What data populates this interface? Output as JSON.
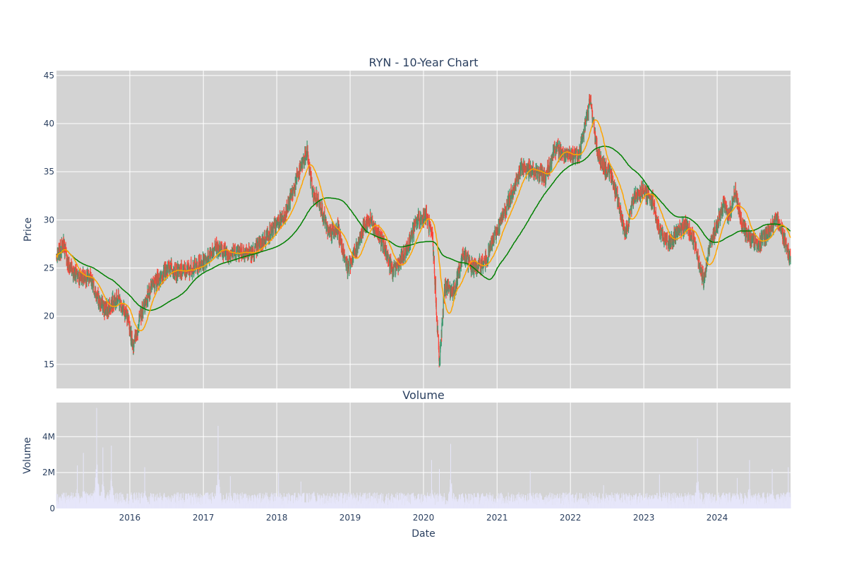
{
  "chart_data": [
    {
      "type": "candlestick",
      "title": "RYN - 10-Year Chart",
      "ylabel": "Price",
      "xlim": [
        "2015-01-01",
        "2024-12-31"
      ],
      "ylim": [
        12.5,
        45.5
      ],
      "y_ticks": [
        15,
        20,
        25,
        30,
        35,
        40,
        45
      ],
      "grid": true,
      "legend": "none",
      "colors": {
        "plot_bg": "#d3d3d3",
        "up": "#3d9970",
        "down": "#ff4136",
        "short_ma": "#ffa500",
        "long_ma": "#008000",
        "grid": "#ffffff"
      },
      "price_path": [
        [
          "2015-01-05",
          26.2
        ],
        [
          "2015-02-05",
          27.6
        ],
        [
          "2015-03-01",
          25.2
        ],
        [
          "2015-04-15",
          24.2
        ],
        [
          "2015-06-15",
          24.0
        ],
        [
          "2015-08-01",
          21.5
        ],
        [
          "2015-09-01",
          20.6
        ],
        [
          "2015-11-01",
          22.0
        ],
        [
          "2015-12-15",
          20.0
        ],
        [
          "2016-01-20",
          17.0
        ],
        [
          "2016-03-01",
          20.5
        ],
        [
          "2016-04-15",
          23.0
        ],
        [
          "2016-06-01",
          24.0
        ],
        [
          "2016-07-15",
          25.2
        ],
        [
          "2016-09-01",
          24.5
        ],
        [
          "2016-11-01",
          25.0
        ],
        [
          "2017-01-01",
          25.5
        ],
        [
          "2017-03-01",
          27.2
        ],
        [
          "2017-05-01",
          26.5
        ],
        [
          "2017-07-01",
          26.8
        ],
        [
          "2017-09-01",
          26.5
        ],
        [
          "2017-11-01",
          28.0
        ],
        [
          "2018-01-01",
          29.5
        ],
        [
          "2018-02-15",
          30.8
        ],
        [
          "2018-03-15",
          32.5
        ],
        [
          "2018-05-01",
          35.5
        ],
        [
          "2018-06-01",
          37.0
        ],
        [
          "2018-07-01",
          32.5
        ],
        [
          "2018-08-01",
          32.0
        ],
        [
          "2018-09-15",
          28.5
        ],
        [
          "2018-11-01",
          29.0
        ],
        [
          "2018-12-20",
          25.0
        ],
        [
          "2019-02-01",
          27.0
        ],
        [
          "2019-03-15",
          29.5
        ],
        [
          "2019-04-15",
          30.0
        ],
        [
          "2019-06-15",
          27.5
        ],
        [
          "2019-08-01",
          24.5
        ],
        [
          "2019-10-01",
          26.5
        ],
        [
          "2019-12-01",
          30.0
        ],
        [
          "2020-01-15",
          30.5
        ],
        [
          "2020-02-15",
          28.0
        ],
        [
          "2020-03-20",
          15.0
        ],
        [
          "2020-04-15",
          23.0
        ],
        [
          "2020-06-01",
          22.5
        ],
        [
          "2020-07-15",
          26.5
        ],
        [
          "2020-09-01",
          25.0
        ],
        [
          "2020-11-01",
          25.5
        ],
        [
          "2021-01-01",
          29.0
        ],
        [
          "2021-03-01",
          32.0
        ],
        [
          "2021-05-01",
          35.5
        ],
        [
          "2021-07-01",
          35.0
        ],
        [
          "2021-09-01",
          34.5
        ],
        [
          "2021-10-15",
          37.5
        ],
        [
          "2021-12-15",
          36.5
        ],
        [
          "2022-02-15",
          37.0
        ],
        [
          "2022-04-10",
          42.5
        ],
        [
          "2022-05-15",
          37.0
        ],
        [
          "2022-06-15",
          35.5
        ],
        [
          "2022-07-15",
          35.0
        ],
        [
          "2022-09-01",
          31.5
        ],
        [
          "2022-10-01",
          28.5
        ],
        [
          "2022-11-15",
          32.5
        ],
        [
          "2023-01-01",
          33.0
        ],
        [
          "2023-02-15",
          32.0
        ],
        [
          "2023-03-15",
          29.0
        ],
        [
          "2023-05-01",
          27.5
        ],
        [
          "2023-06-15",
          28.5
        ],
        [
          "2023-08-01",
          29.5
        ],
        [
          "2023-09-15",
          27.5
        ],
        [
          "2023-10-25",
          23.5
        ],
        [
          "2023-12-01",
          28.0
        ],
        [
          "2024-01-01",
          29.5
        ],
        [
          "2024-02-01",
          31.5
        ],
        [
          "2024-03-01",
          30.5
        ],
        [
          "2024-04-01",
          33.0
        ],
        [
          "2024-05-01",
          29.5
        ],
        [
          "2024-06-15",
          28.0
        ],
        [
          "2024-08-01",
          27.5
        ],
        [
          "2024-09-15",
          29.0
        ],
        [
          "2024-11-01",
          30.0
        ],
        [
          "2024-12-31",
          26.0
        ]
      ]
    },
    {
      "type": "bar",
      "title": "Volume",
      "xlabel": "Date",
      "ylabel": "Volume",
      "ylim": [
        0,
        5900000
      ],
      "y_ticks": [
        {
          "value": 0,
          "label": "0"
        },
        {
          "value": 2000000,
          "label": "2M"
        },
        {
          "value": 4000000,
          "label": "4M"
        }
      ],
      "x_ticks": [
        {
          "date": "2016-01-01",
          "label": "2016"
        },
        {
          "date": "2017-01-01",
          "label": "2017"
        },
        {
          "date": "2018-01-01",
          "label": "2018"
        },
        {
          "date": "2019-01-01",
          "label": "2019"
        },
        {
          "date": "2020-01-01",
          "label": "2020"
        },
        {
          "date": "2021-01-01",
          "label": "2021"
        },
        {
          "date": "2022-01-01",
          "label": "2022"
        },
        {
          "date": "2023-01-01",
          "label": "2023"
        },
        {
          "date": "2024-01-01",
          "label": "2024"
        }
      ],
      "grid": true,
      "colors": {
        "plot_bg": "#d3d3d3",
        "bar": "#e6e6fa"
      },
      "baseline": 600000,
      "spikes": [
        [
          "2015-04-15",
          2400000
        ],
        [
          "2015-05-15",
          3100000
        ],
        [
          "2015-06-20",
          2000000
        ],
        [
          "2015-07-20",
          5600000
        ],
        [
          "2015-08-20",
          3400000
        ],
        [
          "2015-10-01",
          3500000
        ],
        [
          "2016-03-15",
          2300000
        ],
        [
          "2017-03-15",
          4600000
        ],
        [
          "2017-05-15",
          1800000
        ],
        [
          "2018-01-10",
          2000000
        ],
        [
          "2018-05-01",
          1500000
        ],
        [
          "2018-07-01",
          2300000
        ],
        [
          "2020-02-10",
          2700000
        ],
        [
          "2020-03-20",
          2200000
        ],
        [
          "2020-05-15",
          3600000
        ],
        [
          "2021-05-01",
          2000000
        ],
        [
          "2021-06-15",
          2100000
        ],
        [
          "2022-06-15",
          1300000
        ],
        [
          "2023-03-20",
          1900000
        ],
        [
          "2023-09-25",
          3900000
        ],
        [
          "2024-04-10",
          1700000
        ],
        [
          "2024-06-10",
          2700000
        ],
        [
          "2024-10-01",
          2200000
        ],
        [
          "2024-12-20",
          2300000
        ]
      ]
    }
  ]
}
